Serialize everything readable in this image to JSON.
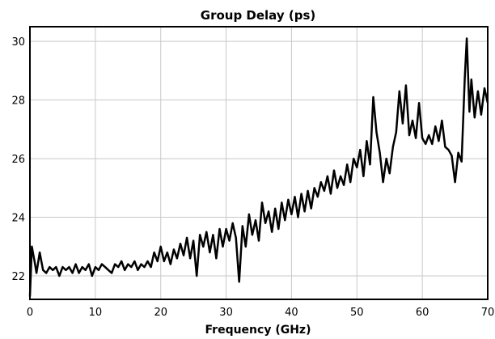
{
  "chart_data": {
    "type": "line",
    "title": "Group Delay (ps)",
    "xlabel": "Frequency (GHz)",
    "ylabel": "",
    "xlim": [
      0,
      70
    ],
    "ylim": [
      21.2,
      30.5
    ],
    "xticks": [
      0,
      10,
      20,
      30,
      40,
      50,
      60,
      70
    ],
    "yticks": [
      22,
      24,
      26,
      28,
      30
    ],
    "grid": true,
    "line_color": "#000000",
    "series": [
      {
        "values": [
          [
            0.0,
            21.3
          ],
          [
            0.3,
            23.0
          ],
          [
            0.7,
            22.5
          ],
          [
            1.0,
            22.1
          ],
          [
            1.5,
            22.8
          ],
          [
            2.0,
            22.2
          ],
          [
            2.5,
            22.1
          ],
          [
            3.0,
            22.3
          ],
          [
            3.5,
            22.2
          ],
          [
            4.0,
            22.3
          ],
          [
            4.5,
            22.0
          ],
          [
            5.0,
            22.3
          ],
          [
            5.5,
            22.2
          ],
          [
            6.0,
            22.3
          ],
          [
            6.5,
            22.1
          ],
          [
            7.0,
            22.4
          ],
          [
            7.5,
            22.1
          ],
          [
            8.0,
            22.3
          ],
          [
            8.5,
            22.2
          ],
          [
            9.0,
            22.4
          ],
          [
            9.5,
            22.0
          ],
          [
            10.0,
            22.3
          ],
          [
            10.5,
            22.2
          ],
          [
            11.0,
            22.4
          ],
          [
            11.5,
            22.3
          ],
          [
            12.0,
            22.2
          ],
          [
            12.5,
            22.1
          ],
          [
            13.0,
            22.4
          ],
          [
            13.5,
            22.3
          ],
          [
            14.0,
            22.5
          ],
          [
            14.5,
            22.2
          ],
          [
            15.0,
            22.4
          ],
          [
            15.5,
            22.3
          ],
          [
            16.0,
            22.5
          ],
          [
            16.5,
            22.2
          ],
          [
            17.0,
            22.4
          ],
          [
            17.5,
            22.3
          ],
          [
            18.0,
            22.5
          ],
          [
            18.5,
            22.3
          ],
          [
            19.0,
            22.8
          ],
          [
            19.5,
            22.5
          ],
          [
            20.0,
            23.0
          ],
          [
            20.5,
            22.5
          ],
          [
            21.0,
            22.8
          ],
          [
            21.5,
            22.4
          ],
          [
            22.0,
            22.9
          ],
          [
            22.5,
            22.6
          ],
          [
            23.0,
            23.1
          ],
          [
            23.5,
            22.7
          ],
          [
            24.0,
            23.3
          ],
          [
            24.5,
            22.6
          ],
          [
            25.0,
            23.2
          ],
          [
            25.5,
            22.0
          ],
          [
            26.0,
            23.4
          ],
          [
            26.5,
            23.0
          ],
          [
            27.0,
            23.5
          ],
          [
            27.5,
            22.8
          ],
          [
            28.0,
            23.4
          ],
          [
            28.5,
            22.6
          ],
          [
            29.0,
            23.6
          ],
          [
            29.5,
            23.0
          ],
          [
            30.0,
            23.6
          ],
          [
            30.5,
            23.2
          ],
          [
            31.0,
            23.8
          ],
          [
            31.5,
            23.3
          ],
          [
            32.0,
            21.8
          ],
          [
            32.5,
            23.7
          ],
          [
            33.0,
            23.0
          ],
          [
            33.5,
            24.1
          ],
          [
            34.0,
            23.4
          ],
          [
            34.5,
            23.9
          ],
          [
            35.0,
            23.2
          ],
          [
            35.5,
            24.5
          ],
          [
            36.0,
            23.8
          ],
          [
            36.5,
            24.2
          ],
          [
            37.0,
            23.5
          ],
          [
            37.5,
            24.3
          ],
          [
            38.0,
            23.6
          ],
          [
            38.5,
            24.5
          ],
          [
            39.0,
            23.9
          ],
          [
            39.5,
            24.6
          ],
          [
            40.0,
            24.1
          ],
          [
            40.5,
            24.7
          ],
          [
            41.0,
            24.0
          ],
          [
            41.5,
            24.8
          ],
          [
            42.0,
            24.2
          ],
          [
            42.5,
            24.9
          ],
          [
            43.0,
            24.3
          ],
          [
            43.5,
            25.0
          ],
          [
            44.0,
            24.7
          ],
          [
            44.5,
            25.2
          ],
          [
            45.0,
            24.9
          ],
          [
            45.5,
            25.4
          ],
          [
            46.0,
            24.8
          ],
          [
            46.5,
            25.6
          ],
          [
            47.0,
            25.0
          ],
          [
            47.5,
            25.4
          ],
          [
            48.0,
            25.1
          ],
          [
            48.5,
            25.8
          ],
          [
            49.0,
            25.2
          ],
          [
            49.5,
            26.0
          ],
          [
            50.0,
            25.7
          ],
          [
            50.5,
            26.3
          ],
          [
            51.0,
            25.4
          ],
          [
            51.5,
            26.6
          ],
          [
            52.0,
            25.8
          ],
          [
            52.5,
            28.1
          ],
          [
            53.0,
            26.9
          ],
          [
            53.5,
            26.2
          ],
          [
            54.0,
            25.2
          ],
          [
            54.5,
            26.0
          ],
          [
            55.0,
            25.5
          ],
          [
            55.5,
            26.4
          ],
          [
            56.0,
            26.9
          ],
          [
            56.5,
            28.3
          ],
          [
            57.0,
            27.2
          ],
          [
            57.5,
            28.5
          ],
          [
            58.0,
            26.8
          ],
          [
            58.5,
            27.3
          ],
          [
            59.0,
            26.7
          ],
          [
            59.5,
            27.9
          ],
          [
            60.0,
            26.7
          ],
          [
            60.5,
            26.5
          ],
          [
            61.0,
            26.8
          ],
          [
            61.5,
            26.5
          ],
          [
            62.0,
            27.1
          ],
          [
            62.5,
            26.6
          ],
          [
            63.0,
            27.3
          ],
          [
            63.5,
            26.4
          ],
          [
            64.0,
            26.3
          ],
          [
            64.5,
            26.1
          ],
          [
            65.0,
            25.2
          ],
          [
            65.5,
            26.2
          ],
          [
            66.0,
            25.9
          ],
          [
            66.5,
            28.8
          ],
          [
            66.8,
            30.1
          ],
          [
            67.2,
            27.6
          ],
          [
            67.5,
            28.7
          ],
          [
            68.0,
            27.4
          ],
          [
            68.5,
            28.3
          ],
          [
            69.0,
            27.5
          ],
          [
            69.5,
            28.4
          ],
          [
            70.0,
            27.9
          ]
        ]
      }
    ]
  }
}
